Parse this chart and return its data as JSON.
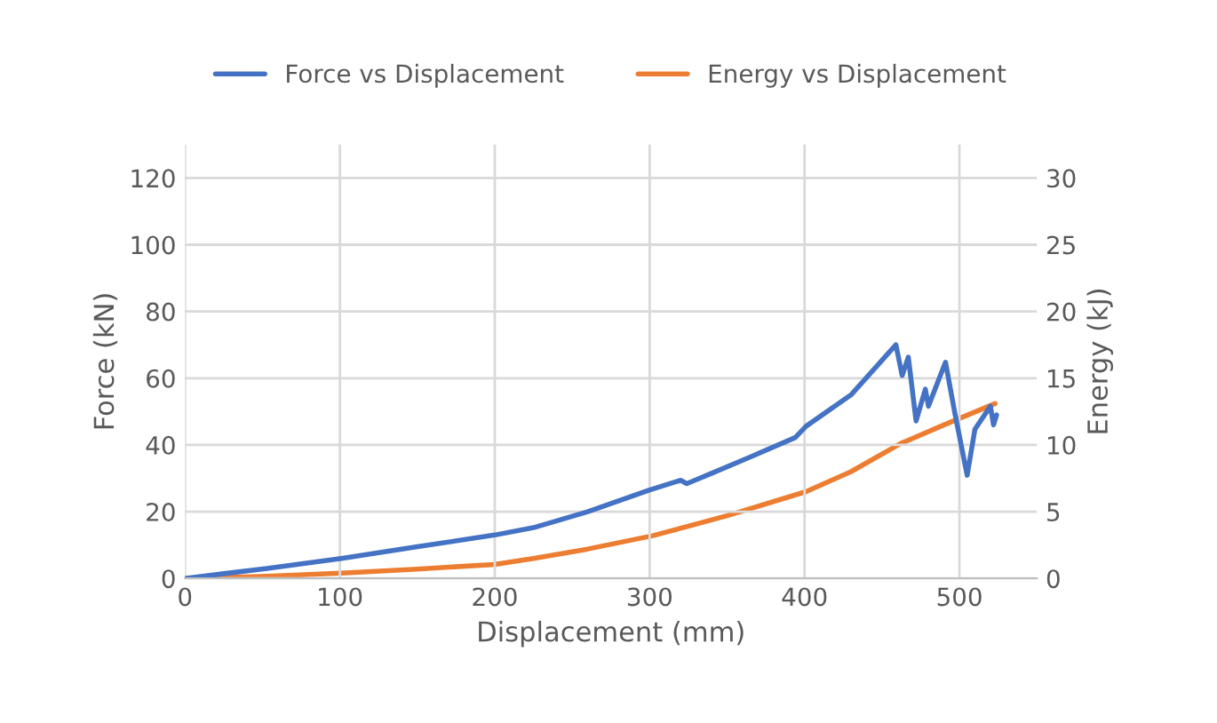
{
  "chart_data": {
    "type": "line",
    "xlabel": "Displacement (mm)",
    "ylabel": "Force (kN)",
    "y2label": "Energy (kJ)",
    "xlim": [
      0,
      550
    ],
    "xticks": [
      0,
      100,
      200,
      300,
      400,
      500
    ],
    "ylim": [
      0,
      130
    ],
    "yticks": [
      0,
      20,
      40,
      60,
      80,
      100,
      120
    ],
    "y2lim": [
      0,
      32.5
    ],
    "y2ticks": [
      0,
      5,
      10,
      15,
      20,
      25,
      30
    ],
    "grid": true,
    "legend": "top",
    "marker": "none",
    "line_style": "solid",
    "series": [
      {
        "name": "Force vs Displacement",
        "color": "#4472c4",
        "x": [
          0,
          53,
          101,
          150,
          200,
          225,
          260,
          300,
          320,
          324,
          340,
          366,
          394,
          401,
          430,
          459,
          463,
          467,
          472,
          478,
          480,
          491,
          497,
          505,
          510,
          520,
          522,
          524
        ],
        "values": [
          0,
          3,
          6,
          9.5,
          13,
          15.2,
          20,
          26.5,
          29.4,
          28.4,
          31.5,
          36.6,
          42.2,
          45.6,
          55,
          70,
          60.8,
          66.3,
          47.2,
          56.7,
          51.6,
          64.8,
          49.6,
          30.9,
          44.7,
          51.6,
          46,
          49
        ]
      },
      {
        "name": "Energy vs Displacement",
        "color": "#ed7d31",
        "axis": "y2",
        "x": [
          0,
          50,
          101,
          150,
          200,
          225,
          260,
          302,
          350,
          401,
          430,
          462,
          490,
          523
        ],
        "values": [
          0,
          0.15,
          0.4,
          0.7,
          1.05,
          1.5,
          2.2,
          3.2,
          4.7,
          6.5,
          8,
          10.1,
          11.5,
          13.1
        ]
      }
    ]
  }
}
